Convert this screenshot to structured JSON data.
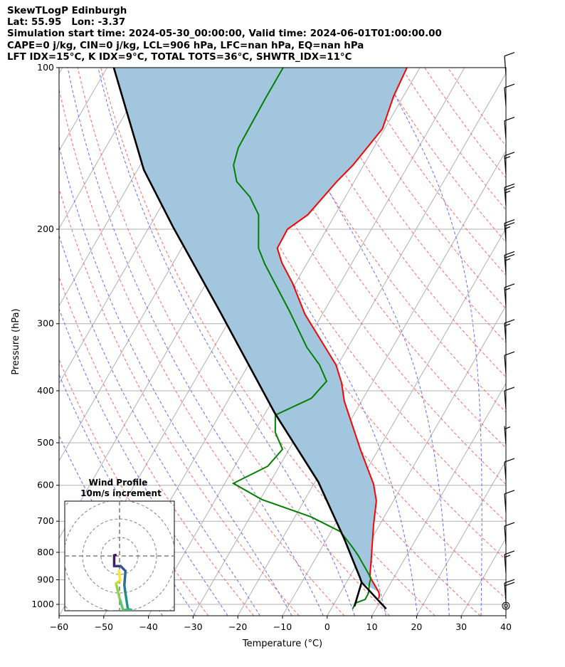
{
  "header": {
    "line1": "SkewTLogP Edinburgh",
    "line2": "Lat: 55.95   Lon: -3.37",
    "line3": "Simulation start time: 2024-05-30_00:00:00, Valid time: 2024-06-01T01:00:00.00",
    "line4": "CAPE=0 j/kg, CIN=0 j/kg, LCL=906 hPa, LFC=nan hPa, EQ=nan hPa",
    "line5": "LFT IDX=15°C, K IDX=9°C, TOTAL TOTS=36°C, SHWTR_IDX=11°C"
  },
  "chart_data": {
    "type": "line",
    "subtype": "skewT-logP",
    "xlabel": "Temperature (°C)",
    "ylabel": "Pressure (hPa)",
    "xlim": [
      -60,
      40
    ],
    "ylim": [
      1050,
      100
    ],
    "xticks": [
      "−60",
      "−50",
      "−40",
      "−30",
      "−20",
      "−10",
      "0",
      "10",
      "20",
      "30",
      "40"
    ],
    "yticks": [
      "100",
      "200",
      "300",
      "400",
      "500",
      "600",
      "700",
      "800",
      "900",
      "1000"
    ],
    "colors": {
      "temperature": "#ff0000",
      "dewpoint": "#008000",
      "parcel": "#000000",
      "fill": "#a3c6df",
      "isotherm": "#b0b0b0",
      "dry_adiabat": "#ff6b6b",
      "moist_adiabat": "#6b6bff"
    },
    "temperature": {
      "p": [
        100,
        113,
        130,
        152,
        163,
        188,
        200,
        217,
        231,
        252,
        288,
        358,
        387,
        418,
        516,
        597,
        642,
        710,
        828,
        888,
        949,
        964,
        976
      ],
      "T": [
        -52.9,
        -52.2,
        -50.5,
        -52.4,
        -53.9,
        -56.1,
        -58.8,
        -58.6,
        -55.7,
        -50.7,
        -43.9,
        -30.4,
        -26.8,
        -23.9,
        -13.9,
        -6.6,
        -3.8,
        -1.4,
        2.7,
        4.5,
        8.5,
        9.1,
        9.3
      ]
    },
    "dewpoint": {
      "p": [
        100,
        114,
        141,
        152,
        163,
        174,
        188,
        217,
        232,
        285,
        332,
        358,
        384,
        413,
        444,
        478,
        514,
        553,
        595,
        638,
        687,
        732,
        778,
        810,
        893,
        915,
        952,
        979,
        994,
        1019
      ],
      "T": [
        -80.6,
        -80.6,
        -80.3,
        -79.1,
        -76.3,
        -71.4,
        -67.1,
        -62.8,
        -59.4,
        -47.6,
        -39.2,
        -34.1,
        -30.4,
        -31.6,
        -37.5,
        -35.3,
        -31.5,
        -32.6,
        -38.1,
        -29.6,
        -16.4,
        -7.9,
        -3.6,
        -0.9,
        4.9,
        5.3,
        6.3,
        6.4,
        4.7,
        4.8
      ]
    },
    "parcel": {
      "p": [
        1019,
        910,
        888,
        810,
        755,
        591,
        440,
        285,
        198,
        155,
        100
      ],
      "T": [
        12.3,
        3.4,
        2.2,
        -2.5,
        -6.1,
        -19.3,
        -37.9,
        -63.2,
        -84.7,
        -98.6,
        -118.5
      ]
    },
    "dew_to_lcl": {
      "p": [
        1009,
        910
      ],
      "T": [
        4.9,
        3.4
      ]
    },
    "wind_barbs": {
      "p": [
        103,
        118,
        136,
        158,
        181,
        211,
        242,
        278,
        324,
        372,
        433,
        504,
        588,
        674,
        774,
        874,
        988
      ],
      "speed_kt": [
        10,
        10,
        10,
        15,
        25,
        25,
        25,
        15,
        15,
        10,
        10,
        5,
        10,
        10,
        10,
        15,
        20
      ]
    },
    "hodograph": {
      "title": "Wind Profile",
      "subtitle": "10m/s increment",
      "ring_step_ms": 10,
      "u": [
        -2.2,
        -2.9,
        -2.9,
        0.6,
        3.2,
        2.6,
        3.2,
        4.5,
        6.4,
        1.9,
        0,
        -1.9,
        0.4,
        -0.4
      ],
      "v": [
        0.5,
        0.3,
        -5.5,
        -5.5,
        -8.1,
        -15.8,
        -20.3,
        -28.6,
        -29.2,
        -29.2,
        -22.8,
        -14.9,
        -13.2,
        -8.1
      ]
    }
  }
}
